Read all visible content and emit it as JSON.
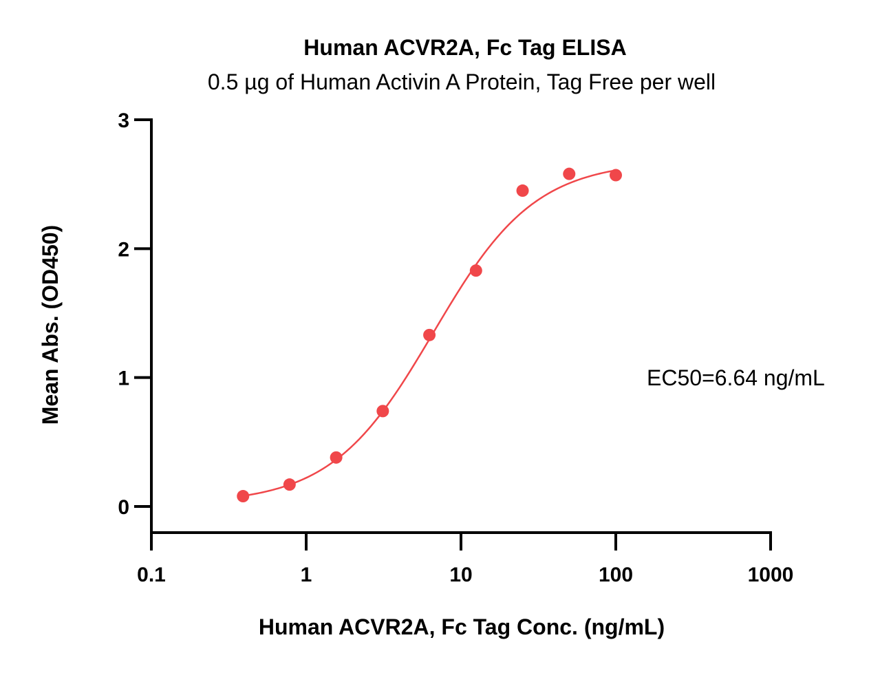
{
  "chart_data": {
    "type": "scatter",
    "title": "Human ACVR2A, Fc Tag ELISA",
    "subtitle": "0.5 µg of Human Activin A Protein, Tag Free per well",
    "xlabel": "Human ACVR2A, Fc Tag Conc. (ng/mL)",
    "ylabel": "Mean Abs. (OD450)",
    "xscale": "log",
    "xlim": [
      0.1,
      1000
    ],
    "ylim": [
      -0.2,
      3
    ],
    "xticks": [
      0.1,
      1,
      10,
      100,
      1000
    ],
    "xtick_labels": [
      "0.1",
      "1",
      "10",
      "100",
      "1000"
    ],
    "yticks": [
      0,
      1,
      2,
      3
    ],
    "ytick_labels": [
      "0",
      "1",
      "2",
      "3"
    ],
    "grid": false,
    "color": "#f0474a",
    "series": [
      {
        "x": [
          0.391,
          0.781,
          1.5625,
          3.125,
          6.25,
          12.5,
          25,
          50,
          100
        ],
        "y": [
          0.08,
          0.17,
          0.38,
          0.74,
          1.33,
          1.83,
          2.45,
          2.58,
          2.57
        ],
        "fit": "4PL"
      }
    ],
    "annotation": "EC50=6.64 ng/mL"
  }
}
